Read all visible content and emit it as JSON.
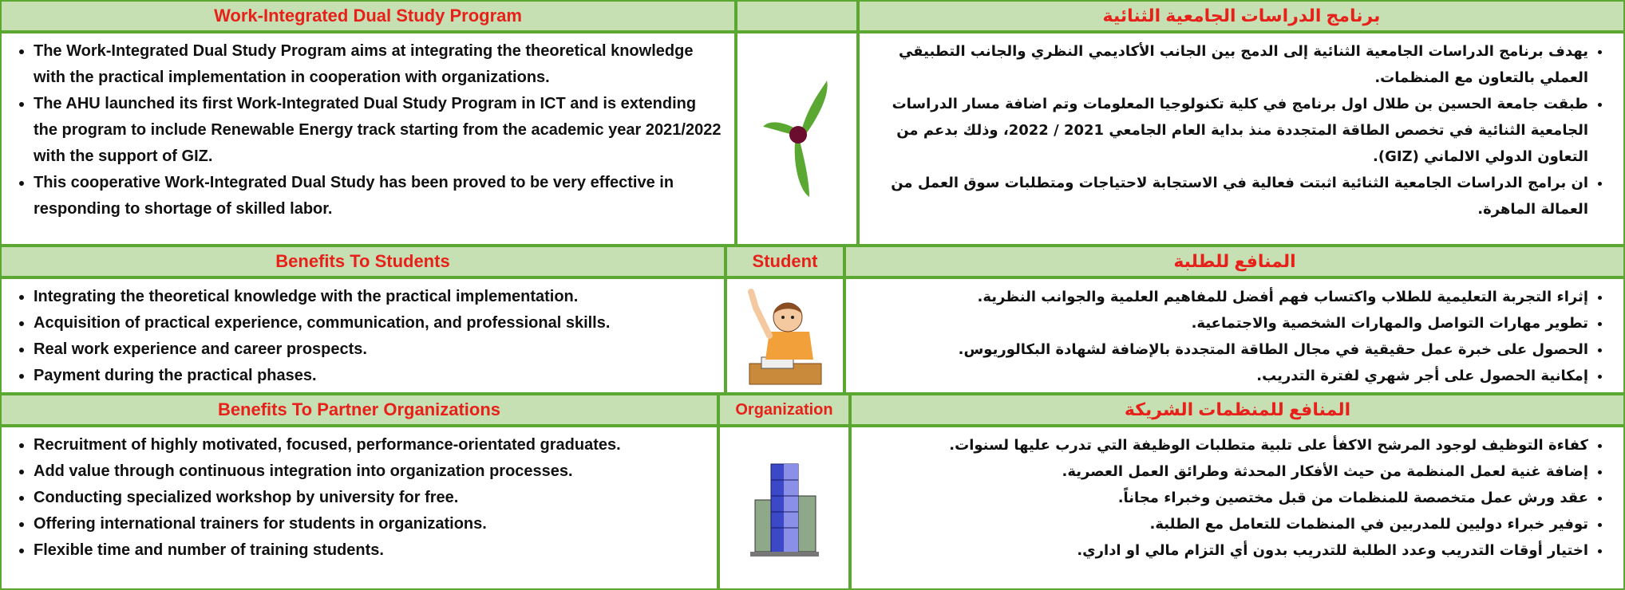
{
  "sections": [
    {
      "header": {
        "en": "Work-Integrated Dual Study Program",
        "ar": "برنامج الدراسات الجامعية الثنائية"
      },
      "en_items": [
        "The Work-Integrated Dual Study Program aims at integrating the theoretical knowledge with the practical implementation in cooperation with organizations.",
        "The AHU launched its first Work-Integrated Dual Study Program in ICT and is extending the program to include Renewable Energy track starting from the academic year 2021/2022 with the support of GIZ.",
        "This cooperative Work-Integrated Dual Study has been proved to be very effective in responding to shortage of skilled labor."
      ],
      "ar_items": [
        "يهدف برنامج الدراسات الجامعية الثنائية إلى الدمج بين الجانب الأكاديمي النظري والجانب التطبيقي العملي بالتعاون مع المنظمات.",
        "طبقت جامعة الحسين بن طلال اول برنامج في كلية تكنولوجيا المعلومات وتم اضافة مسار الدراسات الجامعية الثنائية في تخصص الطاقة المتجددة منذ بداية العام الجامعي 2021 / 2022، وذلك بدعم من التعاون الدولي الالماني (GIZ).",
        "ان برامج الدراسات الجامعية الثنائية اثبتت فعالية في الاستجابة لاحتياجات ومتطلبات سوق العمل من العمالة الماهرة."
      ]
    },
    {
      "header": {
        "en": "Benefits To Students",
        "middle": "Student",
        "ar": "المنافع للطلبة"
      },
      "en_items": [
        "Integrating the theoretical knowledge with the practical implementation.",
        "Acquisition of practical experience, communication, and professional skills.",
        "Real work experience and career prospects.",
        "Payment during the practical phases."
      ],
      "ar_items": [
        "إثراء التجربة التعليمية للطلاب واكتساب فهم أفضل للمفاهيم العلمية والجوانب النظرية.",
        "تطوير مهارات التواصل والمهارات الشخصية والاجتماعية.",
        "الحصول على خبرة عمل حقيقية في مجال الطاقة المتجددة بالإضافة لشهادة البكالوريوس.",
        "إمكانية الحصول على أجر شهري لفترة التدريب."
      ]
    },
    {
      "header": {
        "en": "Benefits To Partner Organizations",
        "middle": "Organization",
        "ar": "المنافع للمنظمات الشريكة"
      },
      "en_items": [
        "Recruitment of highly motivated, focused, performance-orientated graduates.",
        "Add value through continuous integration into organization processes.",
        "Conducting specialized workshop by university for free.",
        "Offering international trainers for students in organizations.",
        "Flexible time and number of training students."
      ],
      "ar_items": [
        "كفاءة التوظيف لوجود المرشح الاكفأ على تلبية متطلبات الوظيفة التي تدرب عليها لسنوات.",
        "إضافة غنية لعمل المنظمة من حيث الأفكار المحدثة وطرائق العمل العصرية.",
        "عقد ورش عمل متخصصة للمنظمات من قبل مختصين وخبراء مجاناً.",
        "توفير خبراء دوليين للمدربين في المنظمات للتعامل مع الطلبة.",
        "اختيار أوقات التدريب وعدد الطلبة للتدريب بدون أي التزام مالي او اداري."
      ]
    }
  ]
}
